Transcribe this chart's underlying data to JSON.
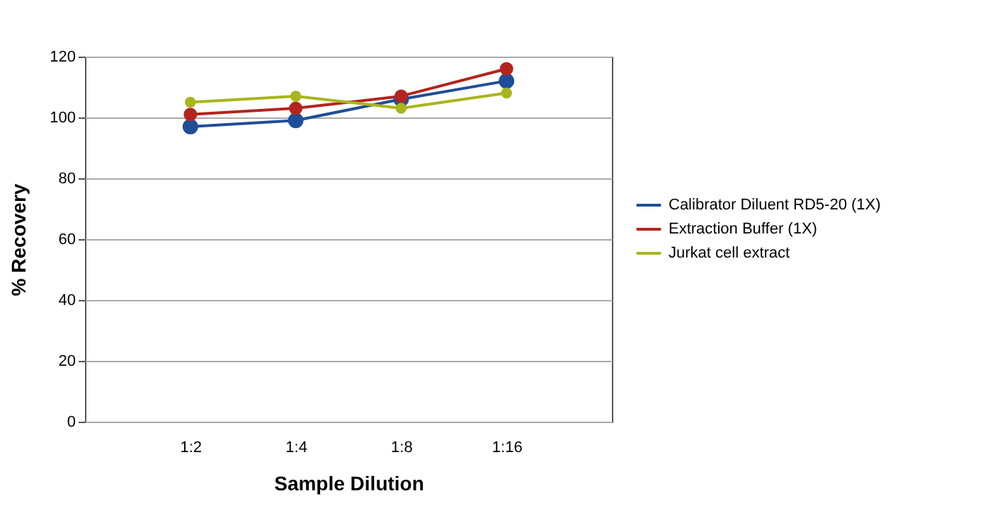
{
  "chart_data": {
    "type": "line",
    "xlabel": "Sample Dilution",
    "ylabel": "% Recovery",
    "categories": [
      "1:2",
      "1:4",
      "1:8",
      "1:16"
    ],
    "series": [
      {
        "name": "Calibrator Diluent RD5-20 (1X)",
        "color": "#1f4e98",
        "values": [
          97,
          99,
          106,
          112
        ]
      },
      {
        "name": "Extraction Buffer (1X)",
        "color": "#b3241e",
        "values": [
          101,
          103,
          107,
          116
        ]
      },
      {
        "name": "Jurkat cell extract",
        "color": "#a9b51c",
        "values": [
          105,
          107,
          103,
          108
        ]
      }
    ],
    "ylim": [
      0,
      120
    ],
    "yticks": [
      0,
      20,
      40,
      60,
      80,
      100,
      120
    ],
    "grid": "y",
    "legend": "right",
    "marker": "circle",
    "line_style": "solid"
  }
}
